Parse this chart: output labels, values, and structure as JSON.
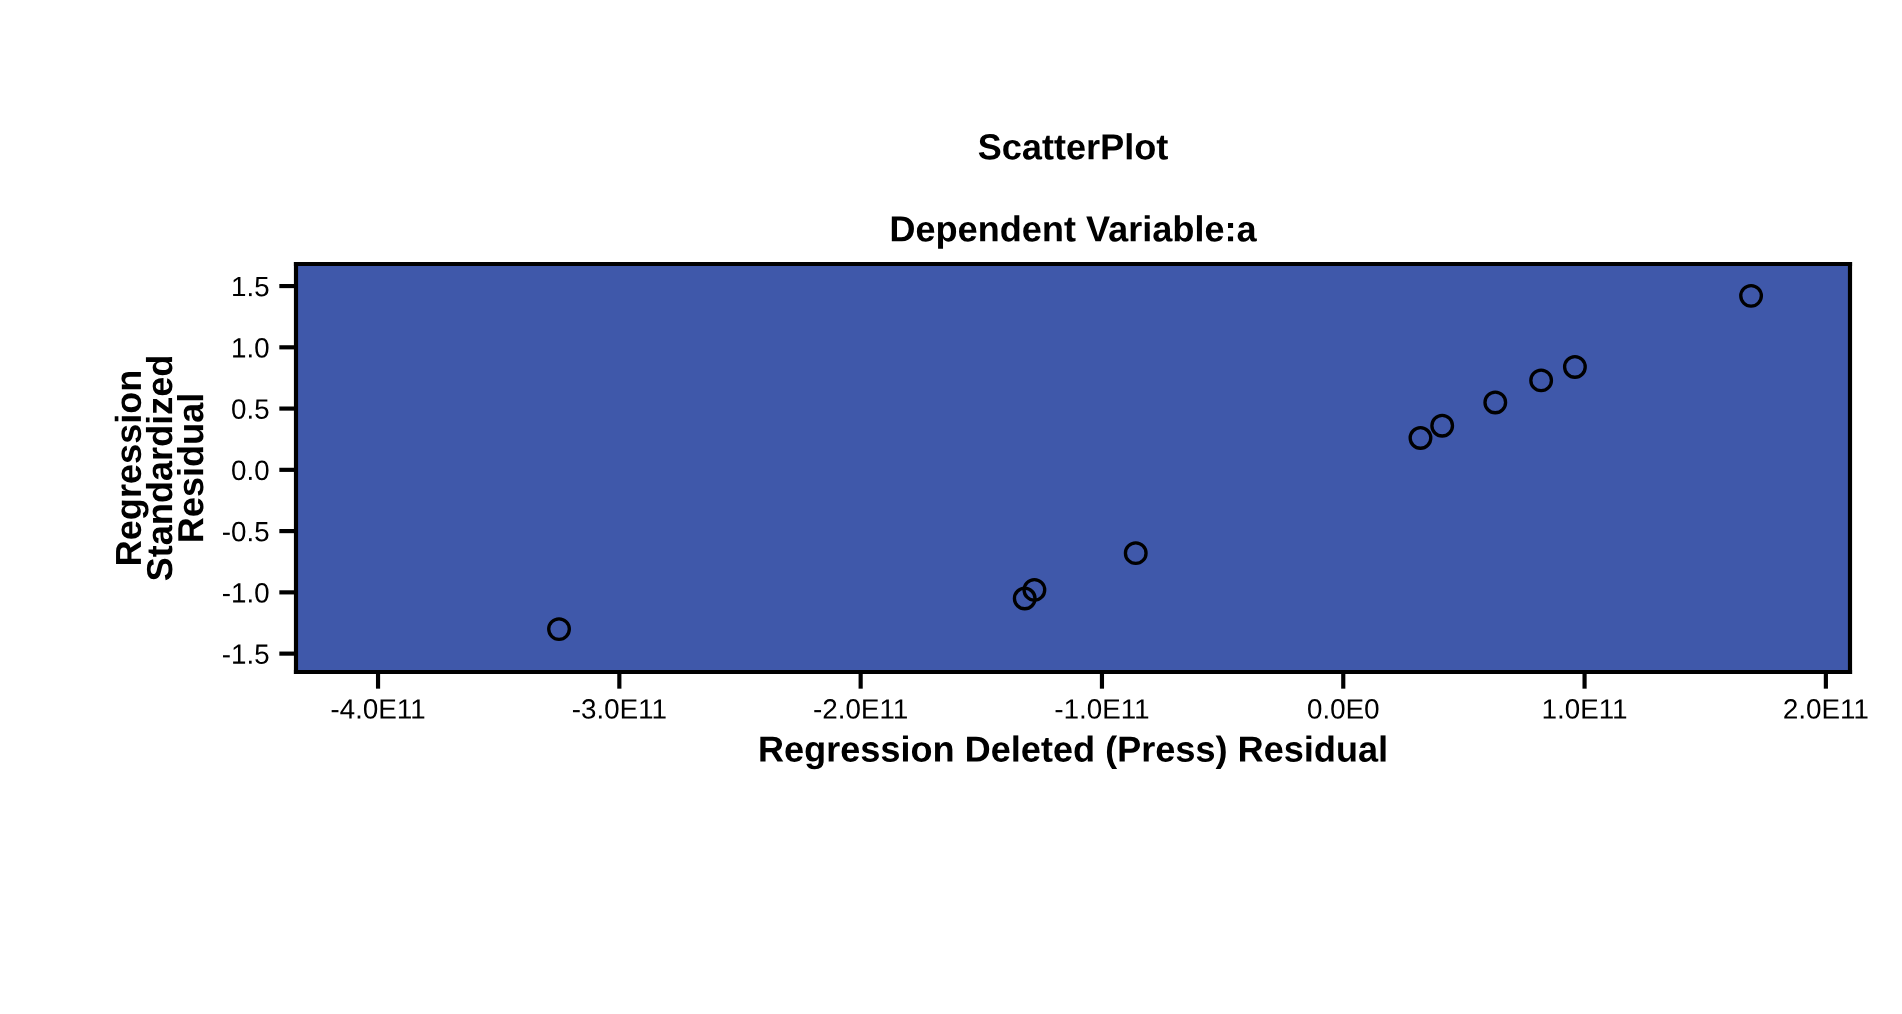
{
  "chart_data": {
    "type": "scatter",
    "title": "ScatterPlot",
    "subtitle": "Dependent Variable:a",
    "xlabel": "Regression Deleted (Press) Residual",
    "ylabel": "Regression\nStandardized\nResidual",
    "x": [
      169000000000,
      96000000000,
      82000000000,
      63000000000,
      41000000000,
      32000000000,
      -86000000000,
      -128000000000,
      -132000000000,
      -325000000000
    ],
    "series": [
      {
        "color": "#000000",
        "values": [
          1.42,
          0.84,
          0.73,
          0.55,
          0.36,
          0.26,
          -0.68,
          -0.98,
          -1.05,
          -1.3
        ]
      }
    ],
    "marker": "circle",
    "grid": false,
    "legend": false,
    "xlim": [
      -434000000000,
      210000000000
    ],
    "ylim": [
      -1.65,
      1.68
    ],
    "xticks": [
      {
        "value": -400000000000,
        "label": "-4.0E11"
      },
      {
        "value": -300000000000,
        "label": "-3.0E11"
      },
      {
        "value": -200000000000,
        "label": "-2.0E11"
      },
      {
        "value": -100000000000,
        "label": "-1.0E11"
      },
      {
        "value": 0,
        "label": "0.0E0"
      },
      {
        "value": 100000000000,
        "label": "1.0E11"
      },
      {
        "value": 200000000000,
        "label": "2.0E11"
      }
    ],
    "yticks": [
      {
        "value": -1.5,
        "label": "-1.5"
      },
      {
        "value": -1.0,
        "label": "-1.0"
      },
      {
        "value": -0.5,
        "label": "-0.5"
      },
      {
        "value": 0.0,
        "label": "0.0"
      },
      {
        "value": 0.5,
        "label": "0.5"
      },
      {
        "value": 1.0,
        "label": "1.0"
      },
      {
        "value": 1.5,
        "label": "1.5"
      }
    ]
  }
}
